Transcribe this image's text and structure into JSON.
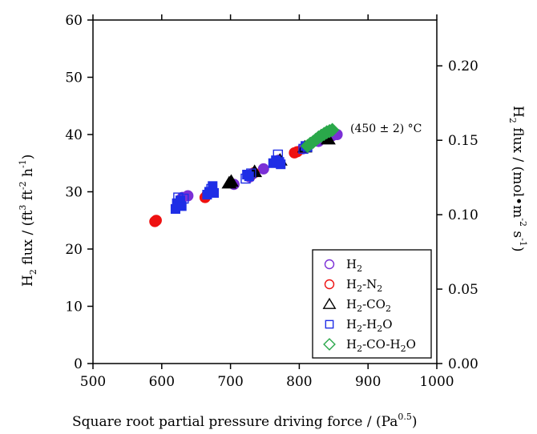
{
  "chart_data": {
    "type": "scatter",
    "xlabel": {
      "main": "Square root partial pressure driving force / (Pa",
      "sup": "0.5",
      "close": ")"
    },
    "ylabel_left": {
      "a": "H",
      "a_sub": "2",
      "b": " flux / (ft",
      "sup1": "3",
      "c": " ft",
      "sup2": "-2",
      "d": " h",
      "sup3": "-1",
      "e": ")"
    },
    "ylabel_right": {
      "a": "H",
      "a_sub": "2",
      "b": " flux / (mol",
      "dot": "•",
      "c": "m",
      "sup1": "-2",
      "d": " s",
      "sup2": "-1",
      "e": ")"
    },
    "xlim": [
      500,
      1000
    ],
    "ylim_left": [
      0,
      60
    ],
    "ylim_right": [
      0,
      0.2308
    ],
    "x_ticks": [
      500,
      600,
      700,
      800,
      900,
      1000
    ],
    "y_left_ticks": [
      0,
      10,
      20,
      30,
      40,
      50,
      60
    ],
    "y_right_ticks": [
      "0.00",
      "0.05",
      "0.10",
      "0.15",
      "0.20"
    ],
    "annotation": "(450 ± 2) °C",
    "legend": {
      "placement": "bottom-right",
      "entries": [
        {
          "series": "H2",
          "label_main": "H",
          "label_sub": "2",
          "label_rest": "",
          "label_sub2": "",
          "label_rest2": "",
          "label_sub3": "",
          "label_rest3": ""
        },
        {
          "series": "H2-N2",
          "label_main": "H",
          "label_sub": "2",
          "label_rest": "-N",
          "label_sub2": "2",
          "label_rest2": "",
          "label_sub3": "",
          "label_rest3": ""
        },
        {
          "series": "H2-CO2",
          "label_main": "H",
          "label_sub": "2",
          "label_rest": "-CO",
          "label_sub2": "2",
          "label_rest2": "",
          "label_sub3": "",
          "label_rest3": ""
        },
        {
          "series": "H2-H2O",
          "label_main": "H",
          "label_sub": "2",
          "label_rest": "-H",
          "label_sub2": "2",
          "label_rest2": "O",
          "label_sub3": "",
          "label_rest3": ""
        },
        {
          "series": "H2-CO-H2O",
          "label_main": "H",
          "label_sub": "2",
          "label_rest": "-CO-H",
          "label_sub2": "2",
          "label_rest2": "O",
          "label_sub3": "",
          "label_rest3": ""
        }
      ]
    },
    "series": [
      {
        "key": "H2",
        "marker": "circle",
        "color": "#7b2fd6",
        "points": [
          [
            630,
            29.0
          ],
          [
            638,
            29.3
          ],
          [
            672,
            30.0
          ],
          [
            705,
            31.3
          ],
          [
            728,
            32.6
          ],
          [
            748,
            34.0
          ],
          [
            770,
            35.5
          ],
          [
            805,
            37.5
          ],
          [
            828,
            38.8
          ],
          [
            848,
            39.8
          ],
          [
            855,
            40.0
          ]
        ]
      },
      {
        "key": "H2-N2",
        "marker": "circle",
        "color": "#ee1111",
        "points": [
          [
            590,
            24.8
          ],
          [
            592,
            25.0
          ],
          [
            663,
            29.0
          ],
          [
            666,
            29.5
          ],
          [
            730,
            33.0
          ],
          [
            734,
            33.3
          ],
          [
            793,
            36.8
          ],
          [
            797,
            37.0
          ]
        ]
      },
      {
        "key": "H2-CO2",
        "marker": "triangle",
        "color": "#000000",
        "points": [
          [
            698,
            31.5
          ],
          [
            701,
            31.8
          ],
          [
            735,
            33.5
          ],
          [
            772,
            35.5
          ],
          [
            808,
            37.8
          ],
          [
            842,
            39.2
          ]
        ]
      },
      {
        "key": "H2-H2O",
        "marker": "square",
        "color": "#1f2ee6",
        "points": [
          [
            620,
            27.0
          ],
          [
            622,
            28.0
          ],
          [
            624,
            29.0
          ],
          [
            627,
            28.5
          ],
          [
            629,
            27.5
          ],
          [
            632,
            28.8
          ],
          [
            666,
            29.5
          ],
          [
            669,
            30.0
          ],
          [
            672,
            30.5
          ],
          [
            674,
            31.0
          ],
          [
            676,
            29.8
          ],
          [
            722,
            32.3
          ],
          [
            724,
            33.0
          ],
          [
            727,
            32.7
          ],
          [
            730,
            33.2
          ],
          [
            762,
            35.0
          ],
          [
            766,
            35.5
          ],
          [
            769,
            36.5
          ],
          [
            771,
            35.2
          ],
          [
            773,
            34.8
          ],
          [
            806,
            37.5
          ],
          [
            809,
            38.0
          ],
          [
            812,
            37.8
          ]
        ]
      },
      {
        "key": "H2-CO-H2O",
        "marker": "diamond",
        "color": "#2aa84a",
        "points": [
          [
            812,
            38.0
          ],
          [
            816,
            38.4
          ],
          [
            820,
            38.7
          ],
          [
            824,
            39.1
          ],
          [
            828,
            39.5
          ],
          [
            832,
            39.8
          ],
          [
            836,
            40.1
          ],
          [
            840,
            40.4
          ],
          [
            844,
            40.6
          ],
          [
            848,
            40.8
          ]
        ]
      }
    ]
  }
}
